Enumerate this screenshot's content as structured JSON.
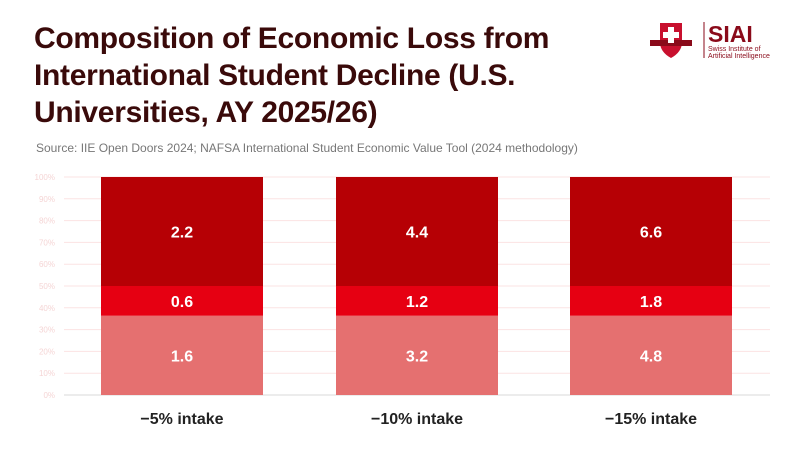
{
  "title": "Composition of Economic Loss from International Student Decline (U.S. Universities, AY 2025/26)",
  "source": "Source: IIE Open Doors 2024; NAFSA International Student Economic Value Tool (2024 methodology)",
  "logo": {
    "text": "SIAI",
    "subtitle_line1": "Swiss Institute of",
    "subtitle_line2": "Artificial Intelligence"
  },
  "colors": {
    "bottom": "#e57070",
    "middle": "#e60012",
    "top": "#b60005",
    "title": "#3a0a0a",
    "grid": "#fbe3e3",
    "tick": "#f5d5d5"
  },
  "chart_data": {
    "type": "bar",
    "stacked": "percent",
    "categories": [
      "−5% intake",
      "−10% intake",
      "−15% intake"
    ],
    "series": [
      {
        "values": [
          1.6,
          3.2,
          4.8
        ]
      },
      {
        "values": [
          0.6,
          1.2,
          1.8
        ]
      },
      {
        "values": [
          2.2,
          4.4,
          6.6
        ]
      }
    ],
    "yticks": [
      "0%",
      "10%",
      "20%",
      "30%",
      "40%",
      "50%",
      "60%",
      "70%",
      "80%",
      "90%",
      "100%"
    ],
    "ylim": [
      0,
      100
    ],
    "grid": true,
    "legend": "none"
  }
}
